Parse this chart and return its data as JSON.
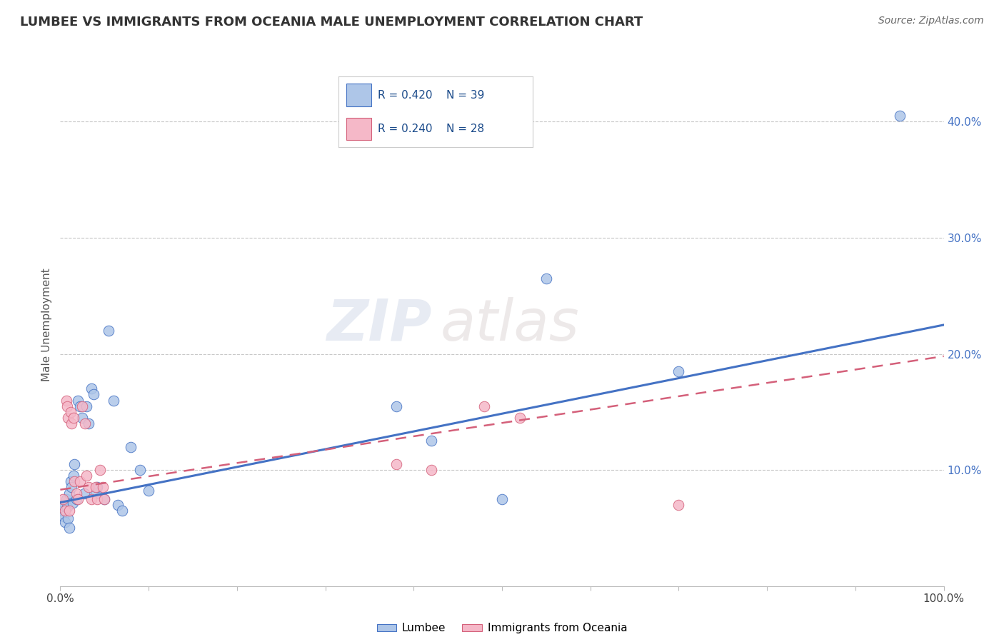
{
  "title": "LUMBEE VS IMMIGRANTS FROM OCEANIA MALE UNEMPLOYMENT CORRELATION CHART",
  "source": "Source: ZipAtlas.com",
  "ylabel": "Male Unemployment",
  "xlim": [
    0,
    1.0
  ],
  "ylim": [
    0,
    0.45
  ],
  "lumbee_R": 0.42,
  "lumbee_N": 39,
  "oceania_R": 0.24,
  "oceania_N": 28,
  "lumbee_color": "#aec6e8",
  "oceania_color": "#f5b8c8",
  "lumbee_line_color": "#4472c4",
  "oceania_line_color": "#d4607a",
  "watermark_zip": "ZIP",
  "watermark_atlas": "atlas",
  "lumbee_x": [
    0.002,
    0.003,
    0.004,
    0.005,
    0.007,
    0.008,
    0.009,
    0.01,
    0.01,
    0.012,
    0.013,
    0.014,
    0.015,
    0.016,
    0.018,
    0.02,
    0.022,
    0.025,
    0.027,
    0.03,
    0.032,
    0.035,
    0.038,
    0.04,
    0.042,
    0.05,
    0.055,
    0.06,
    0.065,
    0.07,
    0.08,
    0.09,
    0.1,
    0.38,
    0.42,
    0.5,
    0.55,
    0.7,
    0.95
  ],
  "lumbee_y": [
    0.065,
    0.07,
    0.06,
    0.055,
    0.075,
    0.068,
    0.058,
    0.08,
    0.05,
    0.09,
    0.085,
    0.072,
    0.095,
    0.105,
    0.075,
    0.16,
    0.155,
    0.145,
    0.08,
    0.155,
    0.14,
    0.17,
    0.165,
    0.08,
    0.085,
    0.075,
    0.22,
    0.16,
    0.07,
    0.065,
    0.12,
    0.1,
    0.082,
    0.155,
    0.125,
    0.075,
    0.265,
    0.185,
    0.405
  ],
  "oceania_x": [
    0.003,
    0.005,
    0.007,
    0.008,
    0.009,
    0.01,
    0.012,
    0.013,
    0.015,
    0.016,
    0.018,
    0.02,
    0.022,
    0.025,
    0.028,
    0.03,
    0.032,
    0.035,
    0.04,
    0.042,
    0.045,
    0.048,
    0.05,
    0.38,
    0.42,
    0.48,
    0.52,
    0.7
  ],
  "oceania_y": [
    0.075,
    0.065,
    0.16,
    0.155,
    0.145,
    0.065,
    0.15,
    0.14,
    0.145,
    0.09,
    0.08,
    0.075,
    0.09,
    0.155,
    0.14,
    0.095,
    0.085,
    0.075,
    0.085,
    0.075,
    0.1,
    0.085,
    0.075,
    0.105,
    0.1,
    0.155,
    0.145,
    0.07
  ],
  "line_x_start": 0.0,
  "line_x_end": 1.0,
  "lumbee_line_y0": 0.072,
  "lumbee_line_y1": 0.225,
  "oceania_line_y0": 0.083,
  "oceania_line_y1": 0.198
}
